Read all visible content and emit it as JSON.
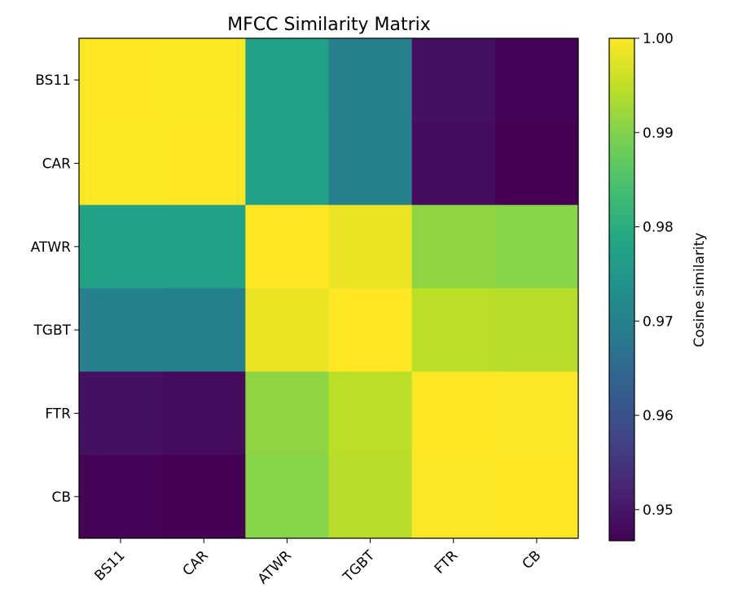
{
  "chart_data": {
    "type": "heatmap",
    "title": "MFCC Similarity Matrix",
    "x_labels": [
      "BS11",
      "CAR",
      "ATWR",
      "TGBT",
      "FTR",
      "CB"
    ],
    "y_labels": [
      "BS11",
      "CAR",
      "ATWR",
      "TGBT",
      "FTR",
      "CB"
    ],
    "values": [
      [
        1.0,
        0.99995,
        0.9773,
        0.9697,
        0.949,
        0.947
      ],
      [
        0.99995,
        1.0,
        0.9772,
        0.9696,
        0.9484,
        0.9467
      ],
      [
        0.9773,
        0.9772,
        1.0,
        0.9984,
        0.991,
        0.9905
      ],
      [
        0.9697,
        0.9696,
        0.9984,
        1.0,
        0.9945,
        0.9942
      ],
      [
        0.949,
        0.9484,
        0.991,
        0.9945,
        1.0,
        0.99985
      ],
      [
        0.947,
        0.9467,
        0.9905,
        0.9942,
        0.99985,
        1.0
      ]
    ],
    "colormap": "viridis",
    "colorbar": {
      "label": "Cosine similarity",
      "range": [
        0.9467,
        1.0
      ],
      "ticks": [
        0.95,
        0.96,
        0.97,
        0.98,
        0.99,
        1.0
      ],
      "tick_labels": [
        "0.95",
        "0.96",
        "0.97",
        "0.98",
        "0.99",
        "1.00"
      ]
    },
    "grid": false
  }
}
